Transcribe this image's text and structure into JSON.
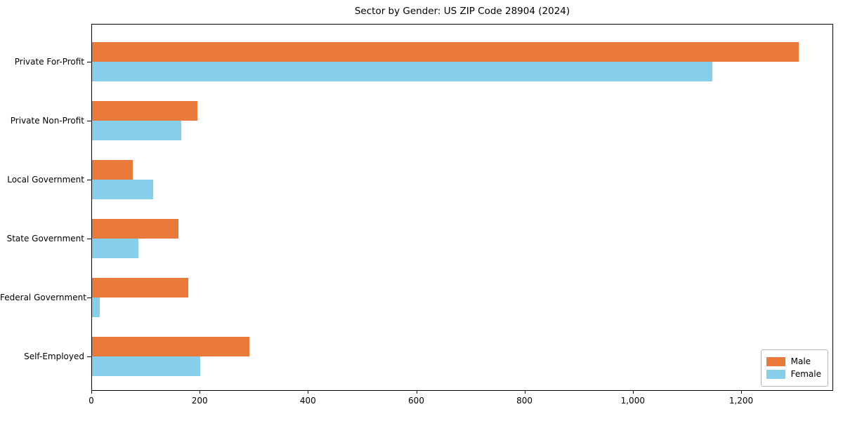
{
  "title": "Sector by Gender: US ZIP Code 28904 (2024)",
  "colors": {
    "male": "#ea7a3b",
    "female": "#87ceeb",
    "spine": "#000000",
    "background": "#ffffff"
  },
  "chart_data": {
    "type": "bar",
    "orientation": "horizontal",
    "title": "Sector by Gender: US ZIP Code 28904 (2024)",
    "xlabel": "",
    "ylabel": "",
    "categories": [
      "Private For-Profit",
      "Private Non-Profit",
      "Local Government",
      "State Government",
      "Federal Government",
      "Self-Employed"
    ],
    "series": [
      {
        "name": "Male",
        "color": "#ea7a3b",
        "values": [
          1305,
          195,
          75,
          160,
          178,
          290
        ]
      },
      {
        "name": "Female",
        "color": "#87ceeb",
        "values": [
          1145,
          165,
          113,
          85,
          14,
          200
        ]
      }
    ],
    "xlim": [
      0,
      1370
    ],
    "x_ticks": [
      0,
      200,
      400,
      600,
      800,
      1000,
      1200
    ],
    "x_tick_labels": [
      "0",
      "200",
      "400",
      "600",
      "800",
      "1,000",
      "1,200"
    ],
    "grid": false,
    "legend_position": "lower right"
  },
  "legend": {
    "entries": [
      {
        "label": "Male"
      },
      {
        "label": "Female"
      }
    ]
  }
}
